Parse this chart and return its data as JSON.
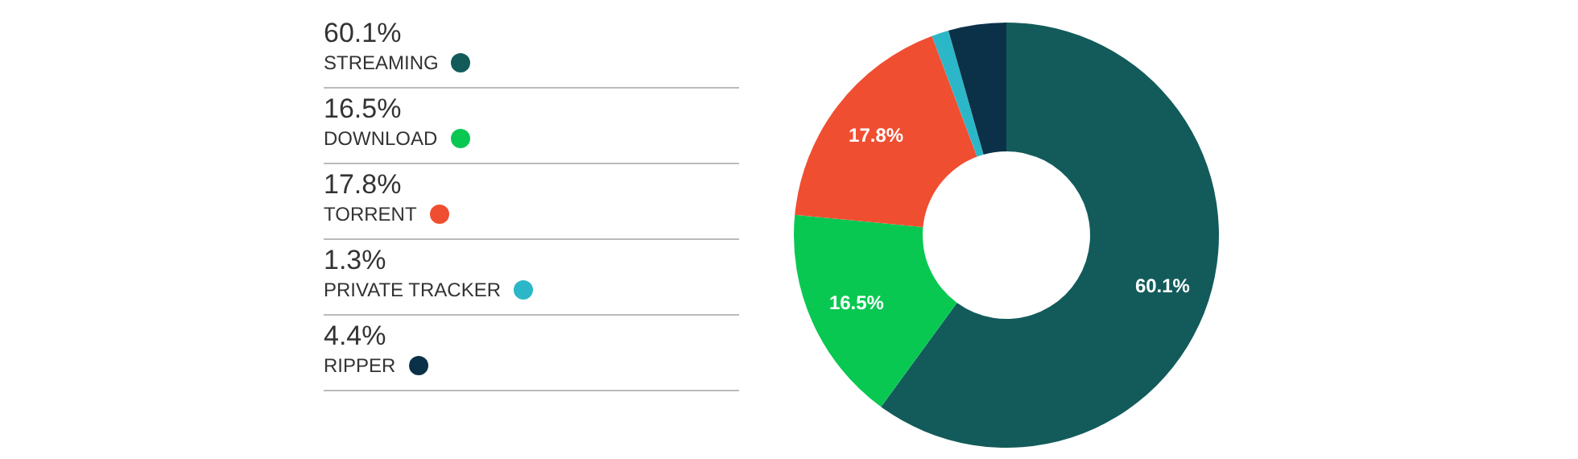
{
  "chart_data": {
    "type": "donut",
    "categories": [
      "STREAMING",
      "DOWNLOAD",
      "TORRENT",
      "PRIVATE TRACKER",
      "RIPPER"
    ],
    "values": [
      60.1,
      16.5,
      17.8,
      1.3,
      4.4
    ],
    "colors": [
      "#135b5b",
      "#08c852",
      "#f04e31",
      "#2bb7c7",
      "#0b3149"
    ],
    "value_labels": [
      "60.1%",
      "16.5%",
      "17.8%",
      "1.3%",
      "4.4%"
    ],
    "legend": "left"
  }
}
